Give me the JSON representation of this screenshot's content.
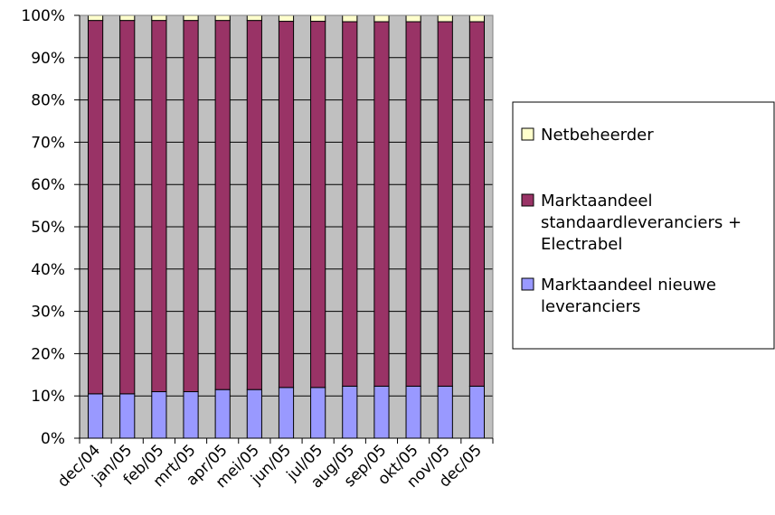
{
  "chart_data": {
    "type": "bar",
    "stacked": true,
    "normalized": true,
    "categories": [
      "dec/04",
      "jan/05",
      "feb/05",
      "mrt/05",
      "apr/05",
      "mei/05",
      "jun/05",
      "jul/05",
      "aug/05",
      "sep/05",
      "okt/05",
      "nov/05",
      "dec/05"
    ],
    "series": [
      {
        "name": "Marktaandeel nieuwe leveranciers",
        "color": "#9999ff",
        "values": [
          10.5,
          10.5,
          11.0,
          11.0,
          11.5,
          11.5,
          12.0,
          12.0,
          12.3,
          12.3,
          12.3,
          12.3,
          12.3
        ]
      },
      {
        "name": "Marktaandeel standaardleveranciers + Electrabel",
        "color": "#993366",
        "values": [
          88.3,
          88.3,
          87.8,
          87.8,
          87.3,
          87.3,
          86.6,
          86.6,
          86.2,
          86.2,
          86.2,
          86.2,
          86.2
        ]
      },
      {
        "name": "Netbeheerder",
        "color": "#ffffcc",
        "values": [
          1.2,
          1.2,
          1.2,
          1.2,
          1.2,
          1.2,
          1.4,
          1.4,
          1.5,
          1.5,
          1.5,
          1.5,
          1.5
        ]
      }
    ],
    "ylim": [
      0,
      100
    ],
    "yticks": [
      "0%",
      "10%",
      "20%",
      "30%",
      "40%",
      "50%",
      "60%",
      "70%",
      "80%",
      "90%",
      "100%"
    ],
    "grid": true,
    "plot_background": "#c0c0c0",
    "legend_position": "right",
    "legend": [
      {
        "lines": [
          "Netbeheerder"
        ],
        "color": "#ffffcc"
      },
      {
        "lines": [
          "Marktaandeel",
          "standaardleveranciers +",
          "Electrabel"
        ],
        "color": "#993366"
      },
      {
        "lines": [
          "Marktaandeel nieuwe",
          "leveranciers"
        ],
        "color": "#9999ff"
      }
    ]
  }
}
